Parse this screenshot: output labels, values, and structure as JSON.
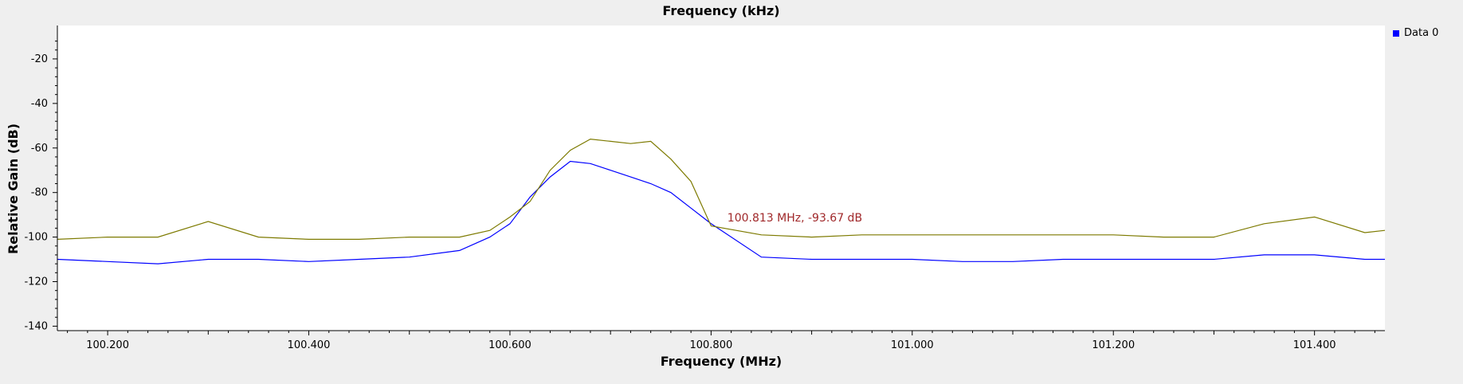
{
  "chart_data": {
    "type": "line",
    "top_title": "Frequency (kHz)",
    "xlabel": "Frequency (MHz)",
    "ylabel": "Relative Gain (dB)",
    "xlim": [
      100.15,
      101.47
    ],
    "ylim": [
      -142,
      -5
    ],
    "x_ticks": [
      100.2,
      100.4,
      100.6,
      100.8,
      101.0,
      101.2,
      101.4
    ],
    "x_tick_labels": [
      "100.200",
      "100.400",
      "100.600",
      "100.800",
      "101.000",
      "101.200",
      "101.400"
    ],
    "y_ticks": [
      -20,
      -40,
      -60,
      -80,
      -100,
      -120,
      -140
    ],
    "y_tick_labels": [
      "-20",
      "-40",
      "-60",
      "-80",
      "-100",
      "-120",
      "-140"
    ],
    "grid": false,
    "legend_position": "top-right",
    "legend": [
      "Data 0"
    ],
    "marker": {
      "x": 100.813,
      "y": -93.67,
      "label": "100.813 MHz, -93.67 dB"
    },
    "series": [
      {
        "name": "Data 0",
        "color": "#0000ff",
        "x": [
          100.15,
          100.2,
          100.25,
          100.3,
          100.35,
          100.4,
          100.45,
          100.5,
          100.55,
          100.58,
          100.6,
          100.62,
          100.64,
          100.66,
          100.68,
          100.7,
          100.72,
          100.74,
          100.76,
          100.78,
          100.8,
          100.85,
          100.9,
          100.95,
          101.0,
          101.05,
          101.1,
          101.15,
          101.2,
          101.25,
          101.3,
          101.35,
          101.4,
          101.45,
          101.47
        ],
        "y": [
          -110,
          -111,
          -112,
          -110,
          -110,
          -111,
          -110,
          -109,
          -106,
          -100,
          -94,
          -82,
          -73,
          -66,
          -67,
          -70,
          -73,
          -76,
          -80,
          -87,
          -94,
          -109,
          -110,
          -110,
          -110,
          -111,
          -111,
          -110,
          -110,
          -110,
          -110,
          -108,
          -108,
          -110,
          -110
        ]
      },
      {
        "color": "#7d7a00",
        "x": [
          100.15,
          100.2,
          100.25,
          100.3,
          100.35,
          100.4,
          100.45,
          100.5,
          100.55,
          100.58,
          100.6,
          100.62,
          100.64,
          100.66,
          100.68,
          100.7,
          100.72,
          100.74,
          100.76,
          100.78,
          100.8,
          100.85,
          100.9,
          100.95,
          101.0,
          101.05,
          101.1,
          101.15,
          101.2,
          101.25,
          101.3,
          101.35,
          101.4,
          101.45,
          101.47
        ],
        "y": [
          -101,
          -100,
          -100,
          -93,
          -100,
          -101,
          -101,
          -100,
          -100,
          -97,
          -91,
          -84,
          -70,
          -61,
          -56,
          -57,
          -58,
          -57,
          -65,
          -75,
          -95,
          -99,
          -100,
          -99,
          -99,
          -99,
          -99,
          -99,
          -99,
          -100,
          -100,
          -94,
          -91,
          -98,
          -97
        ]
      }
    ]
  }
}
